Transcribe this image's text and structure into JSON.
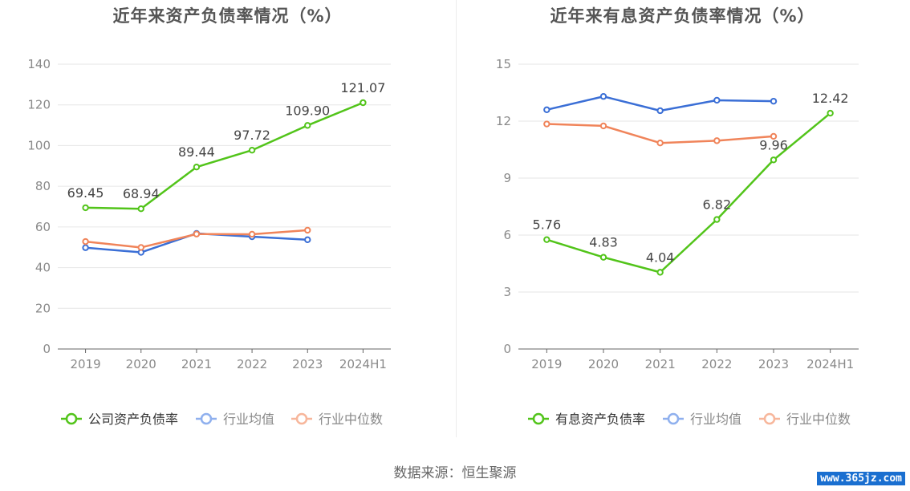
{
  "source_text": "数据来源：恒生聚源",
  "watermark": "www.365jz.com",
  "chart_data": [
    {
      "type": "line",
      "title": "近年来资产负债率情况（%）",
      "categories": [
        "2019",
        "2020",
        "2021",
        "2022",
        "2023",
        "2024H1"
      ],
      "ylim": [
        0,
        140
      ],
      "yticks": [
        0,
        20,
        40,
        60,
        80,
        100,
        120,
        140
      ],
      "grid": true,
      "legend_position": "bottom",
      "series": [
        {
          "name": "公司资产负债率",
          "color": "#52c41a",
          "labeled": true,
          "values": [
            69.45,
            68.94,
            89.44,
            97.72,
            109.9,
            121.07
          ],
          "labels": [
            "69.45",
            "68.94",
            "89.44",
            "97.72",
            "109.90",
            "121.07"
          ]
        },
        {
          "name": "行业均值",
          "color": "#3b6fd6",
          "legend_color": "#8fb0ee",
          "labeled": false,
          "values": [
            49.8,
            47.5,
            56.8,
            55.2,
            53.7,
            null
          ]
        },
        {
          "name": "行业中位数",
          "color": "#f0845a",
          "legend_color": "#f7b69b",
          "labeled": false,
          "values": [
            52.8,
            49.9,
            56.5,
            56.4,
            58.4,
            null
          ]
        }
      ]
    },
    {
      "type": "line",
      "title": "近年来有息资产负债率情况（%）",
      "categories": [
        "2019",
        "2020",
        "2021",
        "2022",
        "2023",
        "2024H1"
      ],
      "ylim": [
        0,
        15
      ],
      "yticks": [
        0,
        3,
        6,
        9,
        12,
        15
      ],
      "grid": true,
      "legend_position": "bottom",
      "series": [
        {
          "name": "有息资产负债率",
          "color": "#52c41a",
          "labeled": true,
          "values": [
            5.76,
            4.83,
            4.04,
            6.82,
            9.96,
            12.42
          ],
          "labels": [
            "5.76",
            "4.83",
            "4.04",
            "6.82",
            "9.96",
            "12.42"
          ]
        },
        {
          "name": "行业均值",
          "color": "#3b6fd6",
          "legend_color": "#8fb0ee",
          "labeled": false,
          "values": [
            12.6,
            13.3,
            12.55,
            13.1,
            13.05,
            null
          ]
        },
        {
          "name": "行业中位数",
          "color": "#f0845a",
          "legend_color": "#f7b69b",
          "labeled": false,
          "values": [
            11.85,
            11.75,
            10.85,
            10.97,
            11.2,
            null
          ]
        }
      ]
    }
  ]
}
